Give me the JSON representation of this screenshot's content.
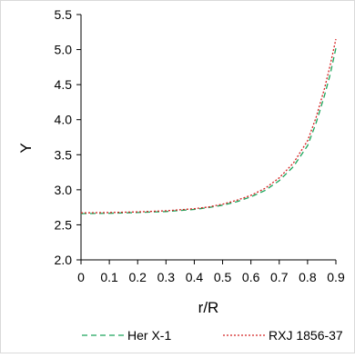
{
  "chart_data": {
    "type": "line",
    "xlabel": "r/R",
    "ylabel": "Y",
    "xlim": [
      0,
      0.9
    ],
    "ylim": [
      2.0,
      5.5
    ],
    "x_ticks": [
      "0",
      "0.1",
      "0.2",
      "0.3",
      "0.4",
      "0.5",
      "0.6",
      "0.7",
      "0.8",
      "0.9"
    ],
    "y_ticks": [
      "2.0",
      "2.5",
      "3.0",
      "3.5",
      "4.0",
      "4.5",
      "5.0",
      "5.5"
    ],
    "grid": false,
    "legend_position": "bottom",
    "series": [
      {
        "name": "Her X-1",
        "color": "#1aa55a",
        "style": "dashed",
        "x": [
          0,
          0.1,
          0.2,
          0.3,
          0.4,
          0.45,
          0.5,
          0.55,
          0.6,
          0.65,
          0.7,
          0.75,
          0.8,
          0.83,
          0.86,
          0.88,
          0.9
        ],
        "y": [
          2.66,
          2.665,
          2.675,
          2.69,
          2.72,
          2.745,
          2.78,
          2.83,
          2.9,
          2.99,
          3.13,
          3.33,
          3.63,
          3.95,
          4.35,
          4.65,
          5.02
        ]
      },
      {
        "name": "RXJ 1856-37",
        "color": "#d42020",
        "style": "dotted",
        "x": [
          0,
          0.1,
          0.2,
          0.3,
          0.4,
          0.45,
          0.5,
          0.55,
          0.6,
          0.65,
          0.7,
          0.75,
          0.8,
          0.83,
          0.86,
          0.88,
          0.9
        ],
        "y": [
          2.67,
          2.675,
          2.685,
          2.7,
          2.73,
          2.755,
          2.795,
          2.85,
          2.92,
          3.02,
          3.17,
          3.38,
          3.7,
          4.03,
          4.45,
          4.78,
          5.15
        ]
      }
    ]
  }
}
